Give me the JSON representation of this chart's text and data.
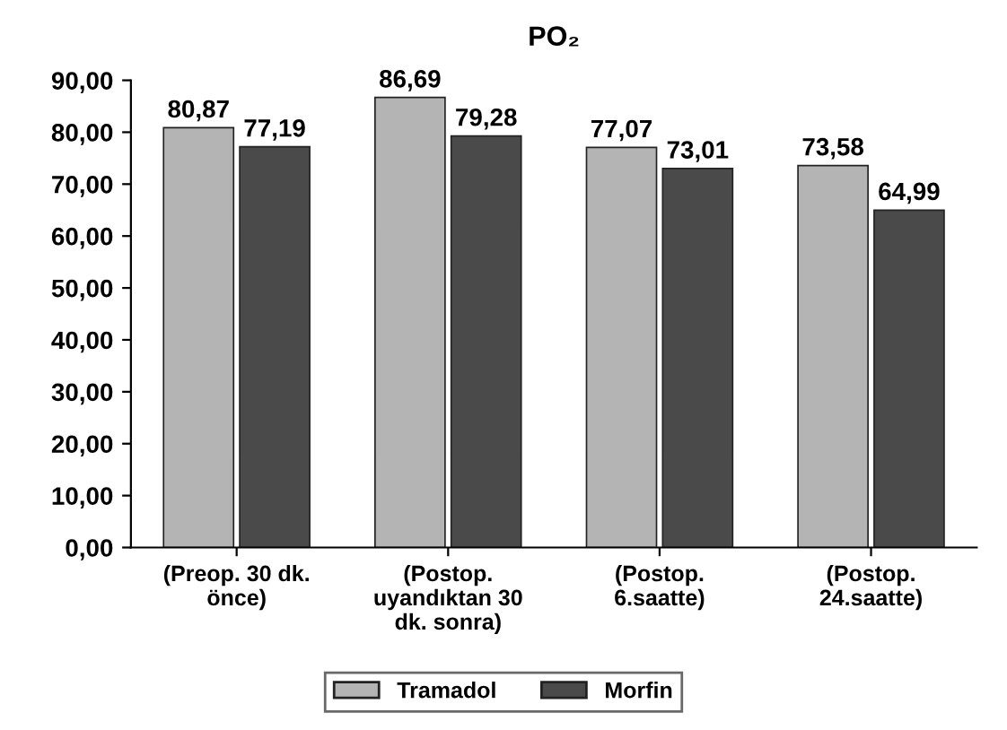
{
  "chart_data": {
    "type": "bar",
    "title": "PO₂",
    "categories": [
      "(Preop. 30 dk.\nönce)",
      "(Postop.\nuyandıktan 30\ndk. sonra)",
      "(Postop.\n6.saatte)",
      "(Postop.\n24.saatte)"
    ],
    "series": [
      {
        "name": "Tramadol",
        "color": "#b4b4b4",
        "values": [
          80.87,
          86.69,
          77.07,
          73.58
        ],
        "value_labels": [
          "80,87",
          "86,69",
          "77,07",
          "73,58"
        ]
      },
      {
        "name": "Morfin",
        "color": "#4a4a4a",
        "values": [
          77.19,
          79.28,
          73.01,
          64.99
        ],
        "value_labels": [
          "77,19",
          "79,28",
          "73,01",
          "64,99"
        ]
      }
    ],
    "ylim": [
      0,
      90
    ],
    "yticks": [
      {
        "value": 0,
        "label": "0,00"
      },
      {
        "value": 10,
        "label": "10,00"
      },
      {
        "value": 20,
        "label": "20,00"
      },
      {
        "value": 30,
        "label": "30,00"
      },
      {
        "value": 40,
        "label": "40,00"
      },
      {
        "value": 50,
        "label": "50,00"
      },
      {
        "value": 60,
        "label": "60,00"
      },
      {
        "value": 70,
        "label": "70,00"
      },
      {
        "value": 80,
        "label": "80,00"
      },
      {
        "value": 90,
        "label": "90,00"
      }
    ],
    "grid": false,
    "legend": "bottom"
  }
}
